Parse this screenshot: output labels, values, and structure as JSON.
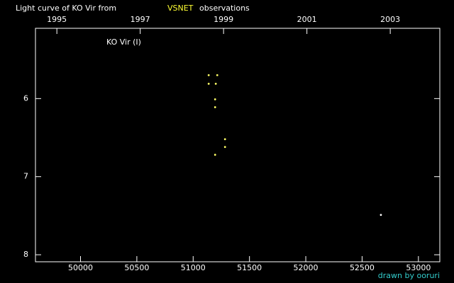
{
  "chart_data": {
    "type": "scatter",
    "title": {
      "prefix": "Light curve of KO Vir from",
      "source": "VSNET",
      "suffix": "observations"
    },
    "star_label": "KO Vir (I)",
    "credit": "drawn by ooruri",
    "series": [
      {
        "color": "#ffff66",
        "x": [
          51138,
          51214,
          51138,
          51201,
          51195,
          51195,
          51283,
          51283,
          51195
        ],
        "values": [
          5.7,
          5.7,
          5.81,
          5.81,
          6.01,
          6.11,
          6.52,
          6.62,
          6.72
        ]
      },
      {
        "color": "#ffffff",
        "x": [
          52667
        ],
        "values": [
          7.49
        ]
      }
    ],
    "xlim": [
      49600,
      53190
    ],
    "ylim": [
      8.09,
      5.1
    ],
    "xticks": [
      50000,
      50500,
      51000,
      51500,
      52000,
      52500,
      53000
    ],
    "yticks": [
      6,
      7,
      8
    ],
    "top_ticks": [
      {
        "value": 49790,
        "label": "1995"
      },
      {
        "value": 50530,
        "label": "1997"
      },
      {
        "value": 51270,
        "label": "1999"
      },
      {
        "value": 52010,
        "label": "2001"
      },
      {
        "value": 52750,
        "label": "2003"
      }
    ],
    "background": "#000000",
    "title_color": "#ffffff",
    "source_color": "#ffff33",
    "credit_color": "#33cccc"
  }
}
